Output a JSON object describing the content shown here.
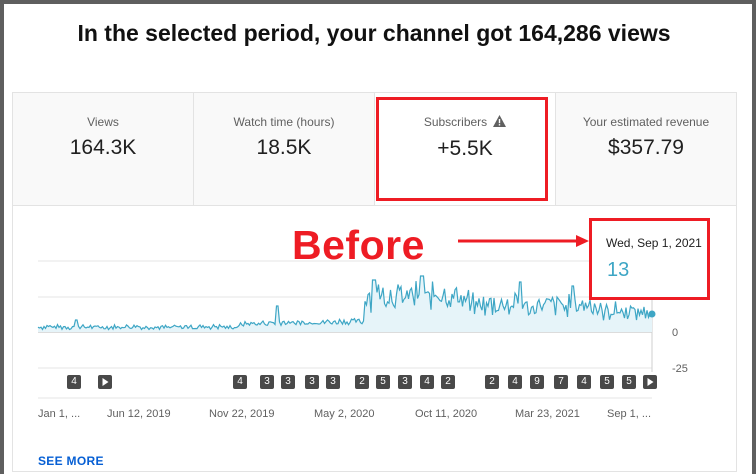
{
  "headline": "In the selected period, your channel got 164,286 views",
  "metrics": [
    {
      "label": "Views",
      "value": "164.3K"
    },
    {
      "label": "Watch time (hours)",
      "value": "18.5K"
    },
    {
      "label": "Subscribers",
      "value": "+5.5K"
    },
    {
      "label": "Your estimated revenue",
      "value": "$357.79"
    }
  ],
  "annotation": {
    "text": "Before"
  },
  "tooltip": {
    "date": "Wed, Sep 1, 2021",
    "value": "13"
  },
  "chart_data": {
    "type": "line",
    "series": [
      {
        "name": "Subscribers",
        "color": "#3ea6c5"
      }
    ],
    "y_ticks": [
      "0",
      "-25"
    ],
    "x_ticks": [
      "Jan 1, ...",
      "Jun 12, 2019",
      "Nov 22, 2019",
      "May 2, 2020",
      "Oct 11, 2020",
      "Mar 23, 2021",
      "Sep 1, ..."
    ],
    "markers": [
      "4",
      "",
      "4",
      "3",
      "3",
      "3",
      "3",
      "2",
      "5",
      "3",
      "4",
      "2",
      "2",
      "4",
      "9",
      "7",
      "4",
      "5",
      "5",
      ""
    ]
  },
  "see_more": "SEE MORE"
}
